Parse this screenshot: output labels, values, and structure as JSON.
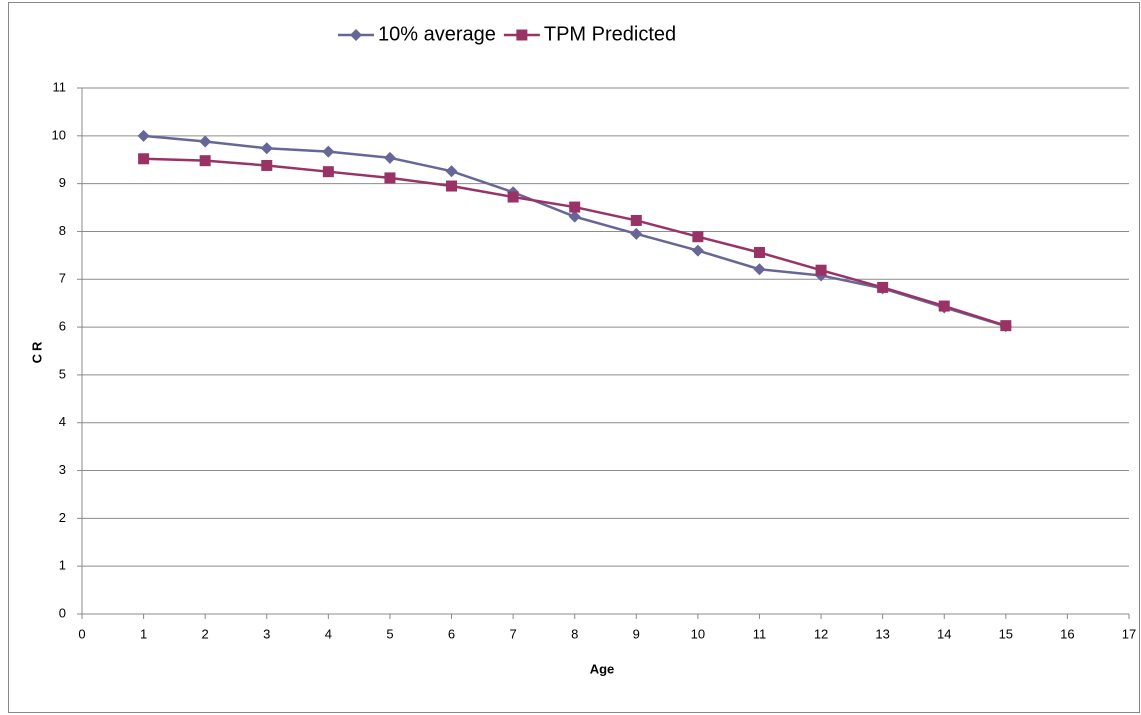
{
  "chart_data": {
    "type": "line",
    "x_label": "Age",
    "y_label": "CR",
    "x": [
      1,
      2,
      3,
      4,
      5,
      6,
      7,
      8,
      9,
      10,
      11,
      12,
      13,
      14,
      15
    ],
    "series": [
      {
        "name": "10% average",
        "color": "#666699",
        "marker": "diamond",
        "values": [
          10.0,
          9.88,
          9.74,
          9.67,
          9.54,
          9.26,
          8.82,
          8.31,
          7.95,
          7.6,
          7.21,
          7.08,
          6.81,
          6.41,
          6.02
        ]
      },
      {
        "name": "TPM Predicted",
        "color": "#993366",
        "marker": "square",
        "values": [
          9.52,
          9.48,
          9.38,
          9.25,
          9.12,
          8.95,
          8.72,
          8.51,
          8.23,
          7.89,
          7.56,
          7.19,
          6.83,
          6.44,
          6.03
        ]
      }
    ],
    "xlim": [
      0,
      17
    ],
    "xticks": [
      0,
      1,
      2,
      3,
      4,
      5,
      6,
      7,
      8,
      9,
      10,
      11,
      12,
      13,
      14,
      15,
      16,
      17
    ],
    "ylim": [
      0,
      11
    ],
    "yticks": [
      0,
      1,
      2,
      3,
      4,
      5,
      6,
      7,
      8,
      9,
      10,
      11
    ],
    "grid": true,
    "legend": "top"
  }
}
